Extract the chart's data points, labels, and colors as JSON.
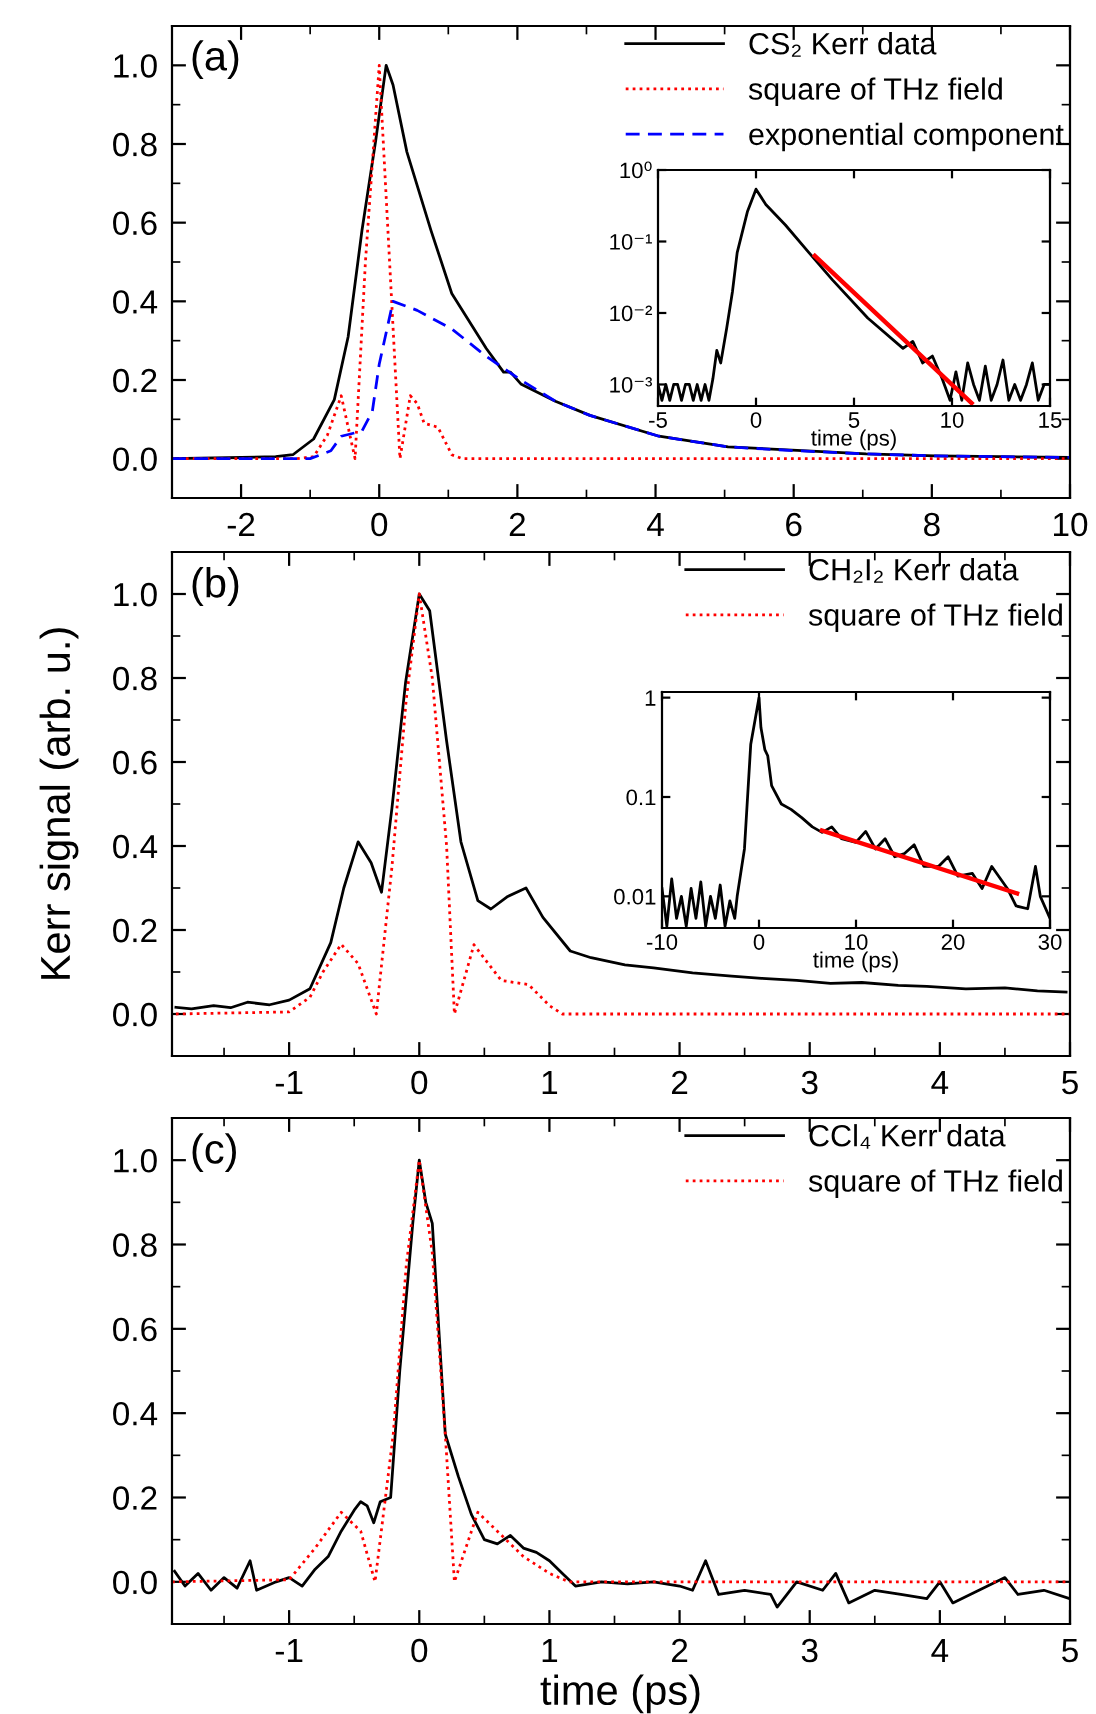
{
  "chart_data": [
    {
      "type": "line",
      "annotations": [
        "(a)"
      ],
      "xlim": [
        -3,
        10
      ],
      "ylim": [
        -0.1,
        1.1
      ],
      "xticks": [
        -2,
        0,
        2,
        4,
        6,
        8,
        10
      ],
      "yticks": [
        {
          "value": 0,
          "label": "0.0"
        },
        {
          "value": 0.2,
          "label": "0.2"
        },
        {
          "value": 0.4,
          "label": "0.4"
        },
        {
          "value": 0.6,
          "label": "0.6"
        },
        {
          "value": 0.8,
          "label": "0.8"
        },
        {
          "value": 1,
          "label": "1.0"
        }
      ],
      "legend": "top right",
      "grid": false,
      "series": [
        {
          "name": "CS₂ Kerr data",
          "color": "#000000",
          "line_style": "solid",
          "x": [
            -3,
            -2,
            -1.5,
            -1.25,
            -0.95,
            -0.65,
            -0.45,
            -0.25,
            -0.05,
            0.1,
            0.2,
            0.4,
            0.75,
            1.05,
            1.55,
            1.8,
            1.9,
            2.05,
            2.55,
            3.05,
            4.05,
            5.05,
            6.05,
            7.05,
            8.05,
            9,
            10
          ],
          "values": [
            0,
            0.003,
            0.005,
            0.01,
            0.05,
            0.15,
            0.31,
            0.58,
            0.81,
            1.0,
            0.95,
            0.78,
            0.58,
            0.42,
            0.28,
            0.22,
            0.22,
            0.19,
            0.146,
            0.11,
            0.057,
            0.03,
            0.021,
            0.012,
            0.007,
            0.005,
            0.003
          ]
        },
        {
          "name": "square of THz field",
          "color": "#ff0000",
          "line_style": "dotted",
          "x": [
            -3,
            -1.2,
            -0.95,
            -0.75,
            -0.55,
            -0.35,
            -0.2,
            0,
            0.15,
            0.3,
            0.45,
            0.55,
            0.65,
            0.85,
            1.05,
            1.2,
            10
          ],
          "values": [
            0,
            0,
            0.005,
            0.06,
            0.16,
            0,
            0.5,
            1.0,
            0.5,
            0,
            0.16,
            0.14,
            0.09,
            0.08,
            0.01,
            0,
            0
          ]
        },
        {
          "name": "exponential component",
          "color": "#0000ff",
          "line_style": "dashed",
          "x": [
            -3,
            -1,
            -0.7,
            -0.55,
            -0.25,
            -0.1,
            0,
            0.2,
            0.55,
            1.05,
            1.55,
            2.05,
            2.55,
            3.05,
            4.05,
            5.05,
            6.05,
            7.05,
            8.05,
            10
          ],
          "values": [
            0,
            0,
            0.02,
            0.057,
            0.07,
            0.12,
            0.24,
            0.4,
            0.377,
            0.33,
            0.26,
            0.2,
            0.146,
            0.11,
            0.057,
            0.03,
            0.02,
            0.012,
            0.007,
            0.003
          ]
        }
      ]
    },
    {
      "type": "line",
      "xlabel": "time (ps)",
      "log": "y",
      "xlim": [
        -5,
        15
      ],
      "ylim": [
        0.0005,
        1
      ],
      "xticks": [
        -5,
        0,
        5,
        10,
        15
      ],
      "yticks": [
        {
          "value": 0.001,
          "label": "10⁻³"
        },
        {
          "value": 0.01,
          "label": "10⁻²"
        },
        {
          "value": 0.1,
          "label": "10⁻¹"
        },
        {
          "value": 1,
          "label": "10⁰"
        }
      ],
      "grid": false,
      "series": [
        {
          "color": "#000000",
          "line_style": "solid",
          "x": [
            -5,
            -4.8,
            -4.6,
            -4.4,
            -4.2,
            -4,
            -3.8,
            -3.6,
            -3.4,
            -3.2,
            -3,
            -2.8,
            -2.6,
            -2.4,
            -2.2,
            -2,
            -1.8,
            -1.5,
            -1.2,
            -0.96,
            -0.44,
            0,
            0.5,
            1.5,
            2.7,
            3.9,
            5.7,
            7.5,
            8,
            8.5,
            9,
            9.5,
            9.9,
            10.2,
            10.5,
            10.8,
            11.1,
            11.4,
            11.7,
            12,
            12.3,
            12.6,
            12.9,
            13.2,
            13.5,
            13.8,
            14.1,
            14.4,
            14.7,
            15
          ],
          "values": [
            0.001,
            0.0006,
            0.001,
            0.0006,
            0.001,
            0.001,
            0.0006,
            0.001,
            0.001,
            0.0006,
            0.001,
            0.0006,
            0.001,
            0.0006,
            0.0012,
            0.003,
            0.002,
            0.006,
            0.02,
            0.07,
            0.26,
            0.54,
            0.33,
            0.17,
            0.07,
            0.029,
            0.0085,
            0.0032,
            0.004,
            0.002,
            0.0025,
            0.0012,
            0.0006,
            0.0015,
            0.0006,
            0.002,
            0.001,
            0.0006,
            0.0018,
            0.0006,
            0.001,
            0.0022,
            0.0006,
            0.001,
            0.0006,
            0.001,
            0.002,
            0.0006,
            0.001,
            0.001
          ]
        },
        {
          "color": "#ff0000",
          "line_style": "solid",
          "x": [
            3,
            11
          ],
          "values": [
            0.063,
            0.00055
          ]
        }
      ]
    },
    {
      "type": "line",
      "annotations": [
        "(b)"
      ],
      "ylabel": "Kerr signal (arb. u.)",
      "xlim": [
        -1.9,
        5
      ],
      "ylim": [
        -0.1,
        1.1
      ],
      "xticks": [
        -1,
        0,
        1,
        2,
        3,
        4,
        5
      ],
      "yticks": [
        {
          "value": 0,
          "label": "0.0"
        },
        {
          "value": 0.2,
          "label": "0.2"
        },
        {
          "value": 0.4,
          "label": "0.4"
        },
        {
          "value": 0.6,
          "label": "0.6"
        },
        {
          "value": 0.8,
          "label": "0.8"
        },
        {
          "value": 1,
          "label": "1.0"
        }
      ],
      "legend": "top right",
      "grid": false,
      "series": [
        {
          "name": "CH₂I₂ Kerr data",
          "color": "#000000",
          "line_style": "solid",
          "x": [
            -1.87,
            -1.75,
            -1.58,
            -1.45,
            -1.32,
            -1.15,
            -1.0,
            -0.84,
            -0.68,
            -0.58,
            -0.47,
            -0.37,
            -0.29,
            -0.21,
            -0.105,
            0,
            0.08,
            0.21,
            0.32,
            0.45,
            0.55,
            0.68,
            0.82,
            0.95,
            1.16,
            1.32,
            1.58,
            1.8,
            2.1,
            2.4,
            2.63,
            2.9,
            3.16,
            3.4,
            3.68,
            3.9,
            4.2,
            4.5,
            4.75,
            4.97
          ],
          "values": [
            0.016,
            0.012,
            0.02,
            0.015,
            0.028,
            0.022,
            0.033,
            0.06,
            0.17,
            0.3,
            0.41,
            0.36,
            0.29,
            0.49,
            0.79,
            1.0,
            0.96,
            0.65,
            0.41,
            0.27,
            0.25,
            0.28,
            0.3,
            0.23,
            0.15,
            0.134,
            0.117,
            0.11,
            0.098,
            0.09,
            0.085,
            0.08,
            0.073,
            0.075,
            0.068,
            0.066,
            0.06,
            0.062,
            0.055,
            0.052
          ]
        },
        {
          "name": "square of THz field",
          "color": "#ff0000",
          "line_style": "dotted",
          "x": [
            -1.87,
            -1.0,
            -0.84,
            -0.74,
            -0.6,
            -0.47,
            -0.33,
            -0.21,
            -0.1,
            0,
            0.1,
            0.21,
            0.27,
            0.42,
            0.53,
            0.63,
            0.84,
            1.0,
            1.1,
            5
          ],
          "values": [
            0,
            0.005,
            0.04,
            0.1,
            0.166,
            0.12,
            0,
            0.35,
            0.75,
            1.0,
            0.8,
            0.4,
            0,
            0.165,
            0.12,
            0.08,
            0.07,
            0.02,
            0,
            0
          ]
        }
      ]
    },
    {
      "type": "line",
      "xlabel": "time (ps)",
      "log": "y",
      "xlim": [
        -10,
        30
      ],
      "ylim": [
        0.0048,
        1.14
      ],
      "xticks": [
        -10,
        0,
        10,
        20,
        30
      ],
      "yticks": [
        0.01,
        0.1,
        1
      ],
      "grid": false,
      "series": [
        {
          "color": "#000000",
          "line_style": "solid",
          "x": [
            -10,
            -9.5,
            -9,
            -8.5,
            -8,
            -7.5,
            -7,
            -6.5,
            -6,
            -5.5,
            -5,
            -4.5,
            -4,
            -3.5,
            -3,
            -2.5,
            -2.25,
            -1.5,
            -0.85,
            0,
            0.2,
            0.6,
            0.9,
            1.3,
            2.3,
            3.3,
            4.4,
            5.5,
            6.5,
            7.5,
            8.5,
            10,
            11,
            12,
            13,
            14,
            15,
            16,
            17,
            18.5,
            19.5,
            20.5,
            22,
            23,
            24,
            25.6,
            26.5,
            27.7,
            28.5,
            29,
            30
          ],
          "values": [
            0.012,
            0.005,
            0.015,
            0.006,
            0.01,
            0.005,
            0.012,
            0.006,
            0.014,
            0.005,
            0.01,
            0.006,
            0.013,
            0.005,
            0.009,
            0.006,
            0.01,
            0.03,
            0.34,
            1.0,
            0.5,
            0.3,
            0.26,
            0.13,
            0.085,
            0.075,
            0.062,
            0.05,
            0.044,
            0.05,
            0.038,
            0.035,
            0.045,
            0.03,
            0.038,
            0.025,
            0.027,
            0.033,
            0.02,
            0.02,
            0.025,
            0.016,
            0.017,
            0.012,
            0.02,
            0.012,
            0.008,
            0.0075,
            0.02,
            0.01,
            0.006
          ]
        },
        {
          "color": "#ff0000",
          "line_style": "solid",
          "x": [
            6.5,
            26.6
          ],
          "values": [
            0.046,
            0.0107
          ]
        }
      ]
    },
    {
      "type": "line",
      "annotations": [
        "(c)"
      ],
      "xlabel": "time (ps)",
      "xlim": [
        -1.9,
        5
      ],
      "ylim": [
        -0.1,
        1.1
      ],
      "xticks": [
        -1,
        0,
        1,
        2,
        3,
        4,
        5
      ],
      "yticks": [
        {
          "value": 0,
          "label": "0.0"
        },
        {
          "value": 0.2,
          "label": "0.2"
        },
        {
          "value": 0.4,
          "label": "0.4"
        },
        {
          "value": 0.6,
          "label": "0.6"
        },
        {
          "value": 0.8,
          "label": "0.8"
        },
        {
          "value": 1,
          "label": "1.0"
        }
      ],
      "legend": "top right",
      "grid": false,
      "series": [
        {
          "name": "CCl₄ Kerr data",
          "color": "#000000",
          "line_style": "solid",
          "x": [
            -1.88,
            -1.8,
            -1.7,
            -1.6,
            -1.5,
            -1.4,
            -1.3,
            -1.25,
            -1.1,
            -1.0,
            -0.9,
            -0.8,
            -0.7,
            -0.6,
            -0.5,
            -0.45,
            -0.4,
            -0.35,
            -0.3,
            -0.22,
            -0.15,
            -0.05,
            0,
            0.05,
            0.1,
            0.15,
            0.2,
            0.3,
            0.4,
            0.5,
            0.6,
            0.7,
            0.8,
            0.9,
            1.0,
            1.1,
            1.2,
            1.4,
            1.6,
            1.8,
            2.0,
            2.1,
            2.2,
            2.3,
            2.5,
            2.7,
            2.75,
            2.9,
            3.1,
            3.2,
            3.3,
            3.5,
            3.7,
            3.9,
            4.0,
            4.1,
            4.3,
            4.5,
            4.6,
            4.8,
            5.0
          ],
          "values": [
            0.025,
            -0.01,
            0.02,
            -0.02,
            0.01,
            -0.015,
            0.05,
            -0.02,
            0.0,
            0.01,
            -0.01,
            0.03,
            0.06,
            0.12,
            0.17,
            0.19,
            0.18,
            0.14,
            0.19,
            0.2,
            0.5,
            0.85,
            1.0,
            0.9,
            0.85,
            0.6,
            0.35,
            0.25,
            0.16,
            0.1,
            0.09,
            0.11,
            0.08,
            0.07,
            0.05,
            0.02,
            -0.01,
            0.0,
            -0.005,
            0.0,
            -0.01,
            -0.02,
            0.05,
            -0.03,
            -0.02,
            -0.03,
            -0.06,
            0.0,
            -0.02,
            0.02,
            -0.05,
            -0.02,
            -0.03,
            -0.04,
            0.0,
            -0.05,
            -0.02,
            0.01,
            -0.03,
            -0.02,
            -0.04
          ]
        },
        {
          "name": "square of THz field",
          "color": "#ff0000",
          "line_style": "dotted",
          "x": [
            -1.9,
            -1.0,
            -0.8,
            -0.6,
            -0.45,
            -0.34,
            -0.2,
            -0.1,
            0,
            0.1,
            0.2,
            0.27,
            0.45,
            0.6,
            0.8,
            1.0,
            1.15,
            5
          ],
          "values": [
            0,
            0.005,
            0.08,
            0.165,
            0.12,
            0,
            0.35,
            0.75,
            1.0,
            0.78,
            0.35,
            0,
            0.165,
            0.12,
            0.06,
            0.02,
            0,
            0
          ]
        }
      ]
    }
  ]
}
